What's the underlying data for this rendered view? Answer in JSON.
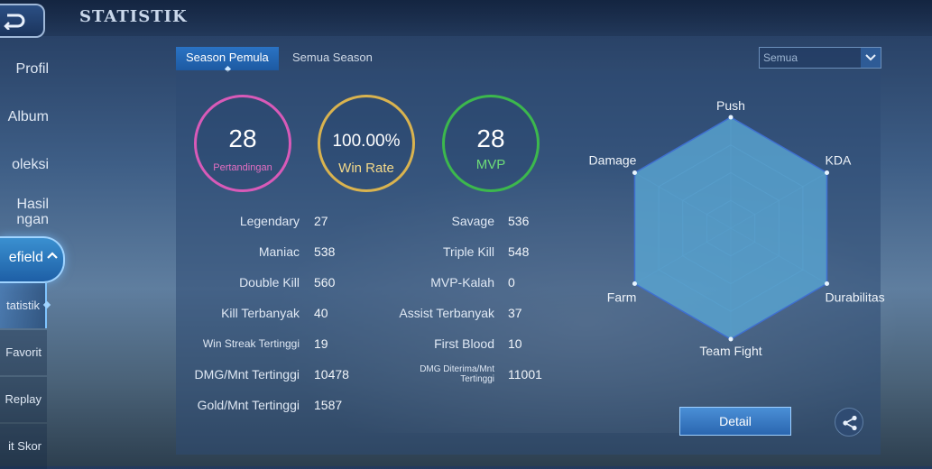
{
  "header": {
    "title": "STATISTIK"
  },
  "sidebar": {
    "items": [
      {
        "label": "Profil"
      },
      {
        "label": "Album"
      },
      {
        "label": "oleksi"
      },
      {
        "label": "Hasil",
        "label2": "ngan"
      }
    ],
    "active": {
      "label": "efield"
    },
    "sub_items": [
      {
        "label": "tatistik"
      },
      {
        "label": "Favorit"
      },
      {
        "label": "Replay"
      },
      {
        "label": "it Skor"
      }
    ]
  },
  "tabs": [
    {
      "label": "Season Pemula"
    },
    {
      "label": "Semua Season"
    }
  ],
  "filter": {
    "value": "Semua"
  },
  "summary": {
    "matches": {
      "value": "28",
      "label": "Pertandingan"
    },
    "win_rate": {
      "value": "100.00%",
      "label": "Win Rate"
    },
    "mvp": {
      "value": "28",
      "label": "MVP"
    }
  },
  "stats": {
    "left": [
      {
        "label": "Legendary",
        "value": "27"
      },
      {
        "label": "Maniac",
        "value": "538"
      },
      {
        "label": "Double Kill",
        "value": "560"
      },
      {
        "label": "Kill Terbanyak",
        "value": "40"
      },
      {
        "label": "Win Streak Tertinggi",
        "value": "19"
      },
      {
        "label": "DMG/Mnt Tertinggi",
        "value": "10478"
      },
      {
        "label": "Gold/Mnt Tertinggi",
        "value": "1587"
      }
    ],
    "right": [
      {
        "label": "Savage",
        "value": "536"
      },
      {
        "label": "Triple Kill",
        "value": "548"
      },
      {
        "label": "MVP-Kalah",
        "value": "0"
      },
      {
        "label": "Assist Terbanyak",
        "value": "37"
      },
      {
        "label": "First Blood",
        "value": "10"
      },
      {
        "label": "DMG Diterima/Mnt",
        "label2": "Tertinggi",
        "value": "11001"
      }
    ]
  },
  "radar": {
    "axes": [
      "Push",
      "KDA",
      "Durabilitas",
      "Team Fight",
      "Farm",
      "Damage"
    ],
    "levels": [
      1,
      1,
      1,
      1,
      1,
      1
    ],
    "fill_color": "#5fb0dc",
    "stroke_color": "#3f6fd0"
  },
  "actions": {
    "detail_label": "Detail",
    "share_icon": "share-icon"
  }
}
